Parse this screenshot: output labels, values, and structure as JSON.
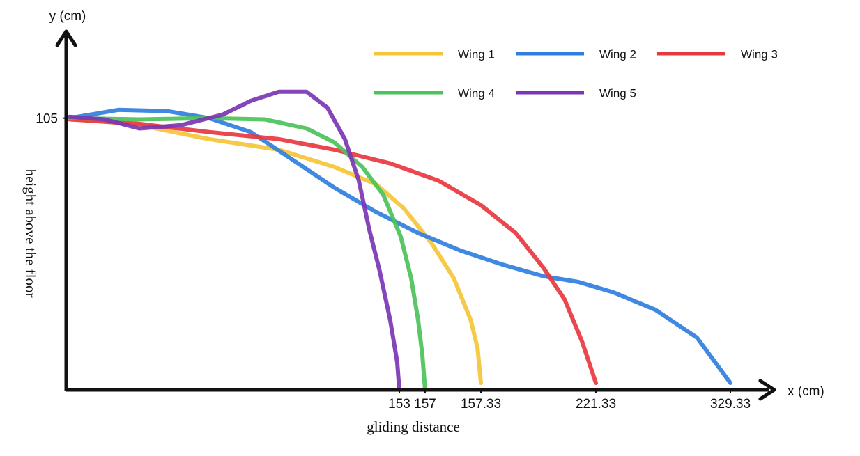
{
  "chart_data": {
    "type": "line",
    "y_axis_label": "y (cm)",
    "x_axis_label": "x (cm)",
    "y_axis_title": "height above the floor",
    "x_axis_title": "gliding distance",
    "xlim": [
      0,
      350
    ],
    "xticks": [
      153,
      157,
      157.33,
      221.33,
      329.33
    ],
    "ylim": [
      0,
      138
    ],
    "yticks": [
      105
    ],
    "grid": false,
    "legend": "top-right",
    "series": [
      {
        "name": "Wing 1",
        "color": "#f5c437",
        "x": [
          1.6,
          33.6,
          65.6,
          97.6,
          123.2,
          142.4,
          153.76,
          157.04,
          157.17,
          157.27,
          157.31,
          157.33
        ],
        "values": [
          105,
          102.3,
          96.9,
          92.8,
          86.1,
          79.4,
          70.0,
          56.5,
          43.1,
          26.9,
          16.2,
          2.7
        ]
      },
      {
        "name": "Wing 2",
        "color": "#2f7fe0",
        "x": [
          1.6,
          24.0,
          46.4,
          65.6,
          84.8,
          104.0,
          123.2,
          142.4,
          155.92,
          157.21,
          168.97,
          192.24,
          211.64,
          235.32,
          268.9,
          302.47,
          329.33
        ],
        "values": [
          105,
          108.2,
          107.7,
          105,
          99.6,
          88.9,
          78.1,
          68.7,
          60.6,
          53.8,
          48.5,
          43.9,
          41.7,
          37.7,
          31.0,
          20.2,
          2.7
        ]
      },
      {
        "name": "Wing 3",
        "color": "#e8383f",
        "x": [
          1.6,
          33.6,
          65.6,
          97.6,
          123.2,
          148.8,
          157.08,
          157.33,
          176.73,
          192.24,
          203.88,
          213.57,
          221.33
        ],
        "values": [
          104.5,
          102.8,
          99.6,
          96.9,
          92.8,
          87.5,
          80.8,
          71.4,
          60.6,
          47.1,
          35.0,
          18.8,
          2.7
        ]
      },
      {
        "name": "Wing 4",
        "color": "#4cc25a",
        "x": [
          1.6,
          33.6,
          65.6,
          91.2,
          110.4,
          123.2,
          136.0,
          145.6,
          153.22,
          154.84,
          155.92,
          156.57,
          157
        ],
        "values": [
          105,
          104.5,
          105,
          104.5,
          101.0,
          95.6,
          86.1,
          75.4,
          59.2,
          43.1,
          26.9,
          13.5,
          0
        ]
      },
      {
        "name": "Wing 5",
        "color": "#7b35b5",
        "x": [
          1.6,
          17.6,
          33.6,
          52.8,
          72.0,
          84.8,
          97.6,
          110.4,
          120.0,
          128.0,
          134.4,
          139.2,
          144.0,
          148.8,
          152.0,
          153
        ],
        "values": [
          105.5,
          104.5,
          101.0,
          102.3,
          106.4,
          111.7,
          115.2,
          115.2,
          109.0,
          96.9,
          80.8,
          61.9,
          45.8,
          26.9,
          10.8,
          0
        ]
      }
    ]
  }
}
